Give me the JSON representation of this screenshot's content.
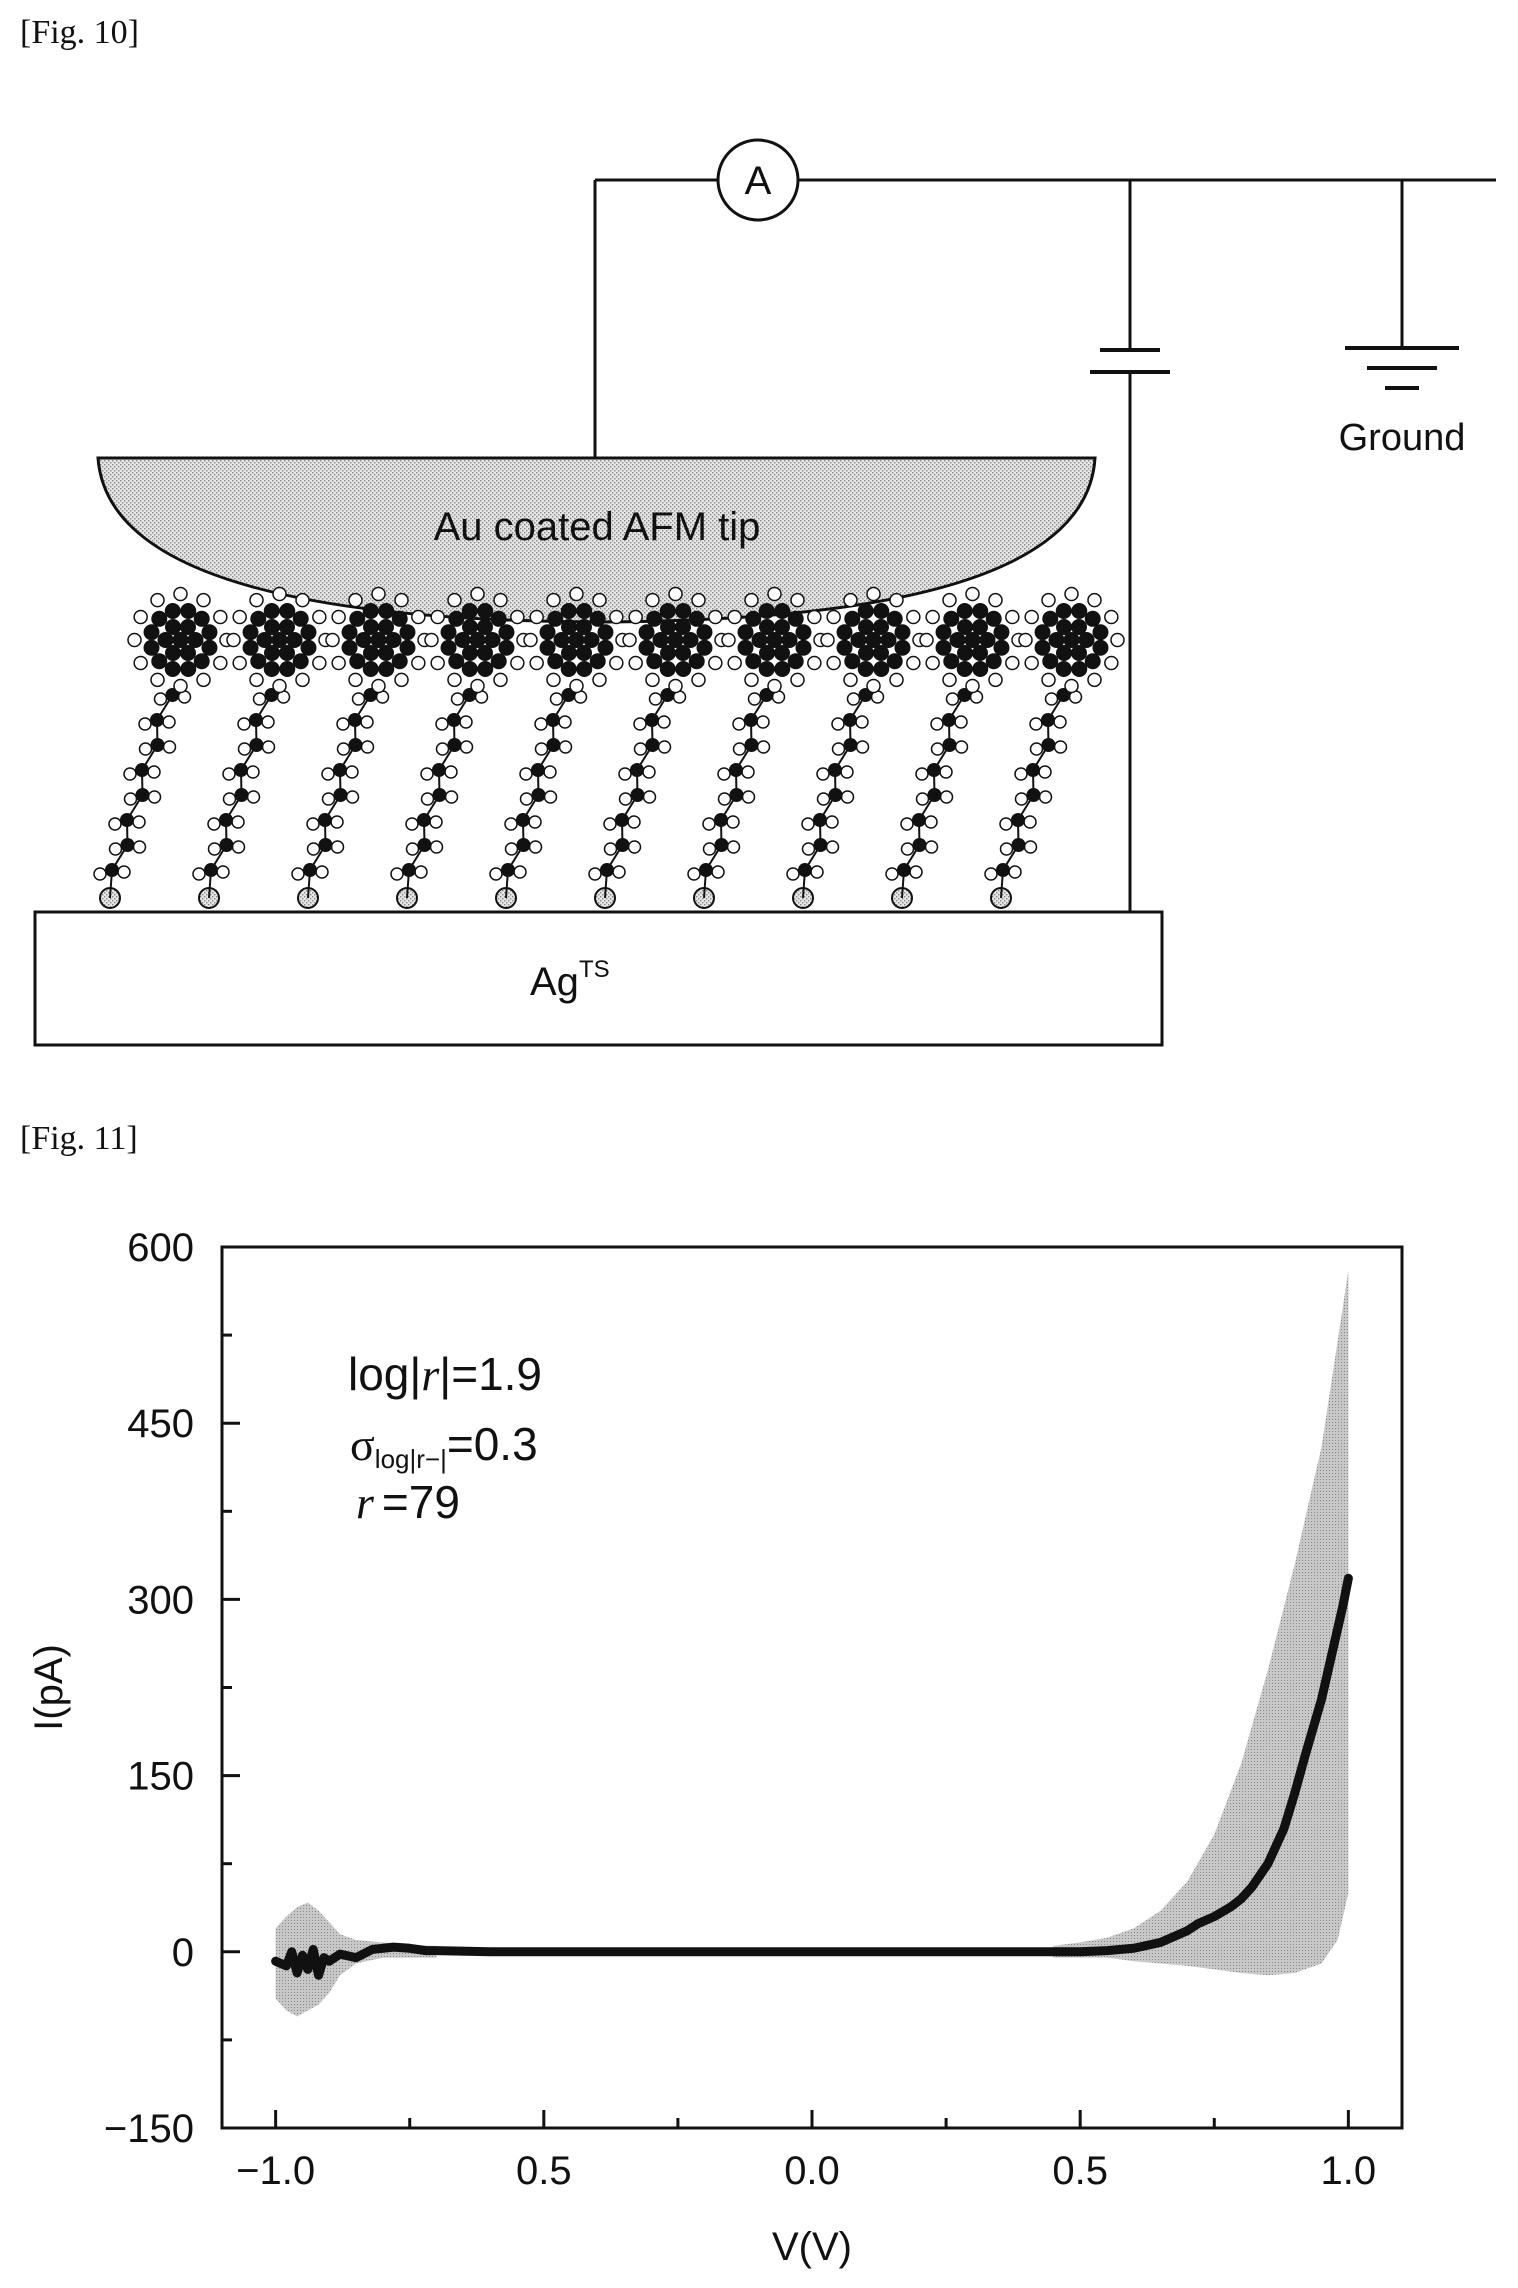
{
  "figure10": {
    "label": "[Fig. 10]",
    "ammeter_label": "A",
    "ground_label": "Ground",
    "tip_label": "Au coated AFM tip",
    "substrate_label": "Ag",
    "substrate_superscript": "TS",
    "molecule_count": 10
  },
  "figure11": {
    "label": "[Fig. 11]",
    "annotations": {
      "line1_prefix": "log|",
      "line1_symbol": "r",
      "line1_suffix": "|=1.9",
      "line2_sigma": "σ",
      "line2_subscript": "log|r−|",
      "line2_value": "=0.3",
      "line3_symbol": "r",
      "line3_value": "=79"
    }
  },
  "chart_data": {
    "type": "line",
    "title": "",
    "xlabel": "V(V)",
    "ylabel": "I(pA)",
    "xlim": [
      -1.1,
      1.1
    ],
    "ylim": [
      -150,
      600
    ],
    "x_tick_values": [
      -1.0,
      -0.5,
      0.0,
      0.5,
      1.0
    ],
    "x_tick_labels": [
      "−1.0",
      "0.5",
      "0.0",
      "0.5",
      "1.0"
    ],
    "y_tick_values": [
      -150,
      0,
      150,
      300,
      450,
      600
    ],
    "y_tick_labels": [
      "−150",
      "0",
      "150",
      "300",
      "450",
      "600"
    ],
    "grid": false,
    "series": [
      {
        "x": [
          -1.0,
          -0.98,
          -0.97,
          -0.96,
          -0.95,
          -0.94,
          -0.93,
          -0.92,
          -0.91,
          -0.9,
          -0.88,
          -0.85,
          -0.82,
          -0.8,
          -0.78,
          -0.75,
          -0.72,
          -0.7,
          -0.6,
          -0.4,
          -0.2,
          0.0,
          0.2,
          0.4,
          0.5,
          0.55,
          0.6,
          0.65,
          0.68,
          0.7,
          0.72,
          0.75,
          0.78,
          0.8,
          0.82,
          0.85,
          0.88,
          0.9,
          0.92,
          0.95,
          0.97,
          0.99,
          1.0
        ],
        "y": [
          -8,
          -12,
          0,
          -18,
          -3,
          -15,
          2,
          -20,
          -5,
          -8,
          -2,
          -5,
          2,
          3,
          4,
          3,
          1,
          1,
          0,
          0,
          0,
          0,
          0,
          0,
          0,
          1,
          3,
          8,
          14,
          18,
          24,
          30,
          38,
          45,
          55,
          75,
          105,
          135,
          168,
          215,
          255,
          295,
          318
        ]
      }
    ],
    "error_band": {
      "x": [
        -1.0,
        -0.98,
        -0.96,
        -0.94,
        -0.92,
        -0.9,
        -0.88,
        -0.85,
        -0.8,
        -0.75,
        -0.7,
        0.45,
        0.5,
        0.55,
        0.6,
        0.65,
        0.7,
        0.75,
        0.8,
        0.85,
        0.9,
        0.95,
        0.98,
        1.0
      ],
      "upper": [
        20,
        30,
        38,
        42,
        35,
        25,
        15,
        10,
        8,
        6,
        5,
        5,
        8,
        12,
        20,
        35,
        60,
        100,
        160,
        240,
        330,
        430,
        520,
        580
      ],
      "lower": [
        -40,
        -50,
        -55,
        -50,
        -45,
        -35,
        -20,
        -10,
        -5,
        -5,
        -5,
        -5,
        -5,
        -5,
        -8,
        -10,
        -12,
        -15,
        -18,
        -20,
        -18,
        -10,
        10,
        50
      ]
    }
  }
}
